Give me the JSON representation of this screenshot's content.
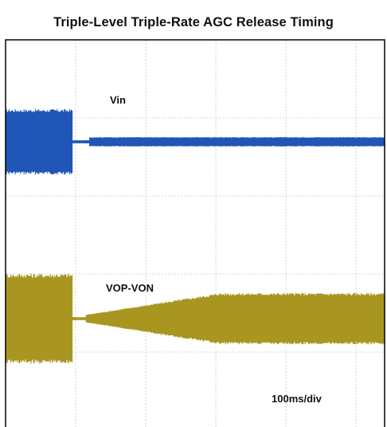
{
  "title": "Triple-Level Triple-Rate AGC Release Timing",
  "chart_data": {
    "type": "line",
    "title": "Triple-Level Triple-Rate AGC Release Timing",
    "grid": true,
    "time_scale_label": "100ms/div",
    "colors": {
      "vin": "#1f56b7",
      "vop": "#a89620",
      "grid": "#c9c9c9",
      "frame": "#000000"
    },
    "series": [
      {
        "name": "Vin",
        "color": "#1f56b7",
        "segments": [
          {
            "t_div_start": 0.0,
            "t_div_end": 0.95,
            "amplitude_div": 0.42
          },
          {
            "t_div_start": 0.95,
            "t_div_end": 1.2,
            "amplitude_div": 0.02
          },
          {
            "t_div_start": 1.2,
            "t_div_end": 5.5,
            "amplitude_div": 0.06
          }
        ]
      },
      {
        "name": "VOP-VON",
        "color": "#a89620",
        "segments": [
          {
            "t_div_start": 0.0,
            "t_div_end": 0.95,
            "amplitude_div": 0.58
          },
          {
            "t_div_start": 0.95,
            "t_div_end": 1.15,
            "amplitude_div": 0.02
          },
          {
            "t_div_start": 1.15,
            "t_div_end": 3.05,
            "amplitude_div_start": 0.05,
            "amplitude_div_end": 0.33
          },
          {
            "t_div_start": 3.05,
            "t_div_end": 5.5,
            "amplitude_div": 0.33
          }
        ]
      }
    ]
  }
}
